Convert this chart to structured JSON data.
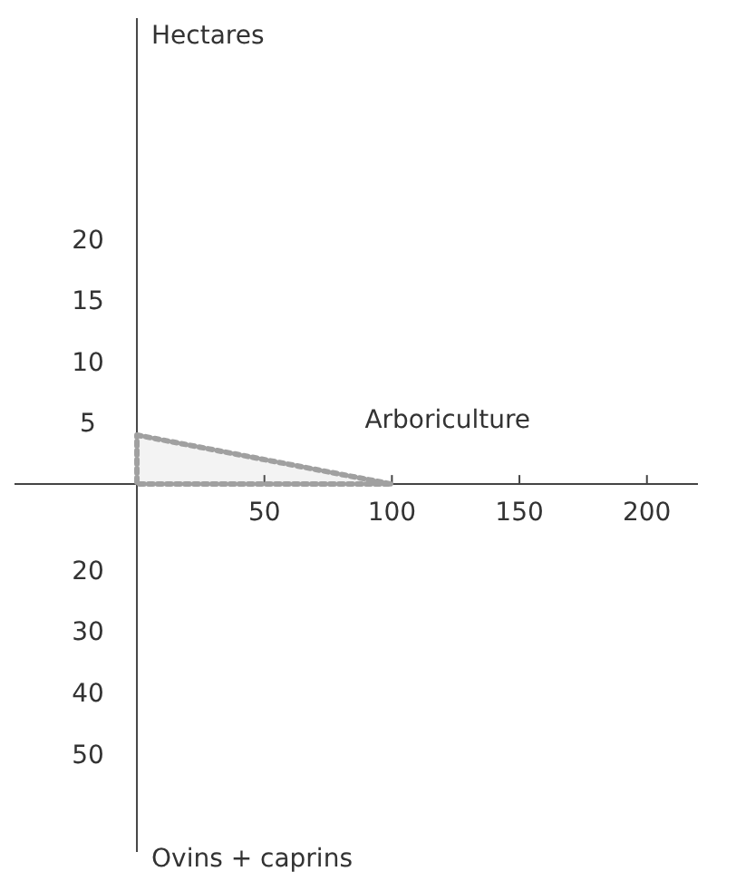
{
  "chart_data": {
    "type": "area",
    "annotations": [
      "Hectares",
      "Ovins + caprins"
    ],
    "xlim": [
      -48,
      220
    ],
    "xticks": [
      50,
      100,
      150,
      200
    ],
    "ylim": [
      -30,
      38
    ],
    "yticks": [
      5,
      10,
      15,
      20
    ],
    "y2lim": [
      66,
      -70
    ],
    "y2ticks": [
      20,
      30,
      40,
      50
    ],
    "grid": false,
    "marker": "none",
    "line_style": "dotted",
    "series": [
      {
        "name": "Arboriculture",
        "color": "#a0a0a0",
        "x": [
          0,
          100
        ],
        "values": [
          4,
          0
        ]
      }
    ]
  }
}
